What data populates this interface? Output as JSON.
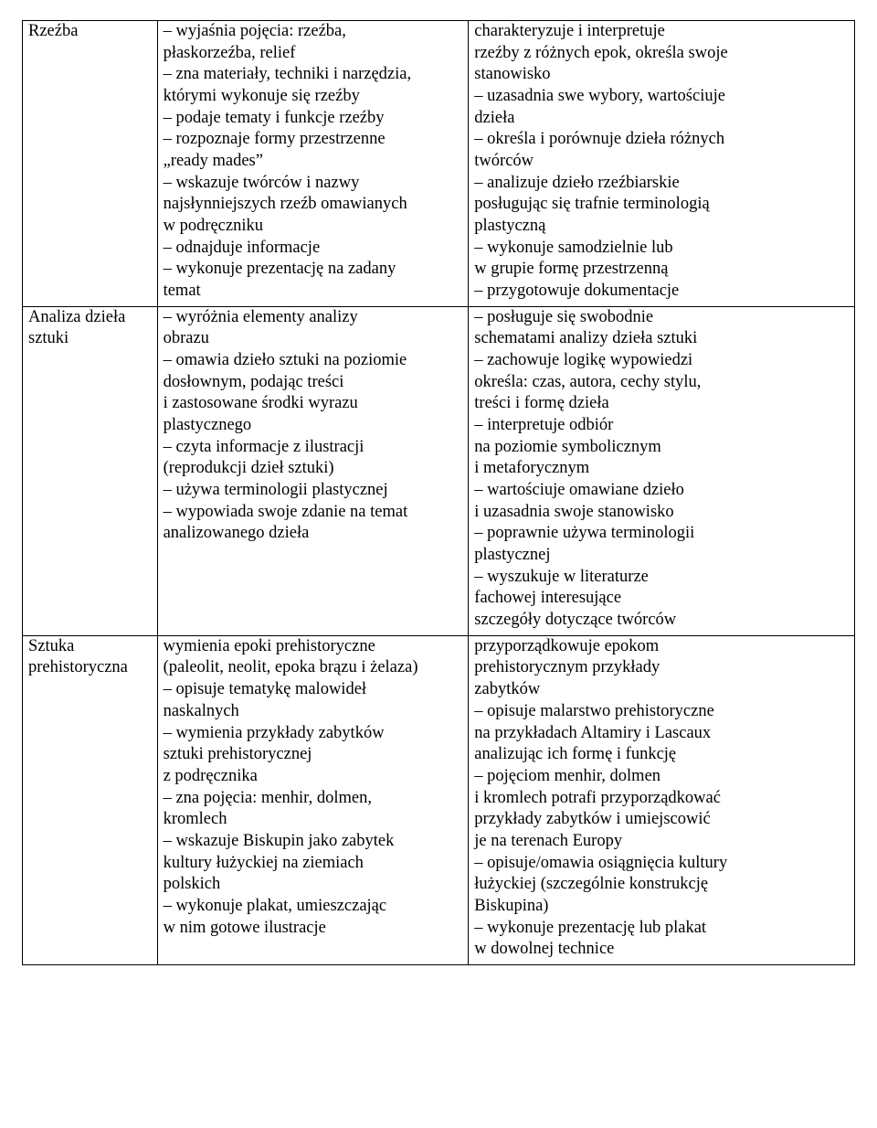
{
  "font": {
    "family": "Times New Roman",
    "size_pt": 14,
    "color": "#000000"
  },
  "layout": {
    "page_bg": "#ffffff",
    "border_color": "#000000",
    "col_widths_pct": [
      16.2,
      37.4,
      46.4
    ]
  },
  "rows": [
    {
      "topic": "Rzeźba",
      "col2": [
        "– wyjaśnia pojęcia: rzeźba,",
        "płaskorzeźba, relief",
        "– zna materiały, techniki i narzędzia,",
        "którymi wykonuje się rzeźby",
        "– podaje tematy i funkcje rzeźby",
        "– rozpoznaje formy przestrzenne",
        "„ready mades”",
        "– wskazuje twórców i nazwy",
        "najsłynniejszych rzeźb omawianych",
        "w podręczniku",
        "– odnajduje informacje",
        "– wykonuje prezentację na zadany",
        "temat"
      ],
      "col3": [
        "charakteryzuje i interpretuje",
        "rzeźby z różnych epok, określa swoje",
        "stanowisko",
        "– uzasadnia swe wybory, wartościuje",
        "dzieła",
        "– określa i porównuje dzieła różnych",
        "twórców",
        "– analizuje dzieło rzeźbiarskie",
        "posługując się trafnie terminologią",
        "plastyczną",
        "– wykonuje samodzielnie lub",
        "w grupie formę przestrzenną",
        "– przygotowuje dokumentacje"
      ]
    },
    {
      "topic": "Analiza dzieła sztuki",
      "col2": [
        "– wyróżnia elementy analizy",
        "obrazu",
        "– omawia dzieło sztuki na poziomie",
        "dosłownym, podając treści",
        "i zastosowane środki wyrazu",
        "plastycznego",
        "– czyta informacje z ilustracji",
        "(reprodukcji dzieł sztuki)",
        "– używa terminologii plastycznej",
        "– wypowiada swoje zdanie na temat",
        "analizowanego dzieła"
      ],
      "col3": [
        "– posługuje się swobodnie",
        "schematami analizy dzieła sztuki",
        "– zachowuje logikę wypowiedzi",
        "określa: czas, autora, cechy stylu,",
        "treści i formę dzieła",
        "– interpretuje odbiór",
        "na poziomie symbolicznym",
        "i metaforycznym",
        "– wartościuje omawiane dzieło",
        "i uzasadnia swoje stanowisko",
        "– poprawnie używa terminologii",
        "plastycznej",
        "– wyszukuje w literaturze",
        "fachowej interesujące",
        "szczegóły dotyczące twórców"
      ]
    },
    {
      "topic": "Sztuka prehistoryczna",
      "col2": [
        "wymienia epoki prehistoryczne",
        "(paleolit, neolit, epoka brązu i żelaza)",
        "– opisuje tematykę malowideł",
        "naskalnych",
        "– wymienia przykłady zabytków",
        "sztuki prehistorycznej",
        "z podręcznika",
        "– zna pojęcia: menhir, dolmen,",
        "kromlech",
        "– wskazuje Biskupin jako zabytek",
        "kultury łużyckiej na ziemiach",
        "polskich",
        "– wykonuje plakat, umieszczając",
        "w nim gotowe ilustracje"
      ],
      "col3": [
        "przyporządkowuje epokom",
        "prehistorycznym przykłady",
        "zabytków",
        "– opisuje malarstwo prehistoryczne",
        "na przykładach Altamiry i Lascaux",
        "analizując ich formę i funkcję",
        "– pojęciom menhir, dolmen",
        "i kromlech potrafi przyporządkować",
        "przykłady zabytków i umiejscowić",
        "je na terenach Europy",
        "– opisuje/omawia osiągnięcia kultury",
        "łużyckiej (szczególnie konstrukcję",
        "Biskupina)",
        "– wykonuje prezentację lub plakat",
        "w dowolnej technice"
      ]
    }
  ]
}
